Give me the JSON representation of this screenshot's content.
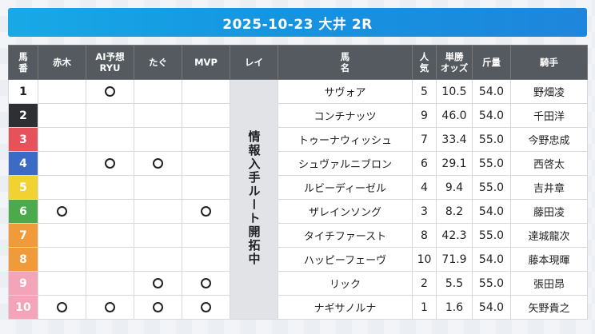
{
  "title": "2025-10-23 大井 2R",
  "headers": {
    "num": [
      "馬",
      "番"
    ],
    "akagi": "赤木",
    "ai": [
      "AI予想",
      "RYU"
    ],
    "tagu": "たぐ",
    "mvp": "MVP",
    "rei": "レイ",
    "horse": [
      "馬",
      "名"
    ],
    "pop": [
      "人",
      "気"
    ],
    "odds": [
      "単勝",
      "オッズ"
    ],
    "weight": "斤量",
    "jockey": "騎手"
  },
  "route_note": "情報入手ルート開拓中",
  "mark_symbol": "circle",
  "rows": [
    {
      "num": "1",
      "akagi": false,
      "ai": true,
      "tagu": false,
      "mvp": false,
      "horse": "サヴォア",
      "pop": "5",
      "odds": "10.5",
      "weight": "54.0",
      "jockey": "野畑凌"
    },
    {
      "num": "2",
      "akagi": false,
      "ai": false,
      "tagu": false,
      "mvp": false,
      "horse": "コンチナッツ",
      "pop": "9",
      "odds": "46.0",
      "weight": "54.0",
      "jockey": "千田洋"
    },
    {
      "num": "3",
      "akagi": false,
      "ai": false,
      "tagu": false,
      "mvp": false,
      "horse": "トゥーナウィッシュ",
      "pop": "7",
      "odds": "33.4",
      "weight": "55.0",
      "jockey": "今野忠成"
    },
    {
      "num": "4",
      "akagi": false,
      "ai": true,
      "tagu": true,
      "mvp": false,
      "horse": "シュヴァルニブロン",
      "pop": "6",
      "odds": "29.1",
      "weight": "55.0",
      "jockey": "西啓太"
    },
    {
      "num": "5",
      "akagi": false,
      "ai": false,
      "tagu": false,
      "mvp": false,
      "horse": "ルビーディーゼル",
      "pop": "4",
      "odds": "9.4",
      "weight": "55.0",
      "jockey": "吉井章"
    },
    {
      "num": "6",
      "akagi": true,
      "ai": false,
      "tagu": false,
      "mvp": true,
      "horse": "ザレインソング",
      "pop": "3",
      "odds": "8.2",
      "weight": "54.0",
      "jockey": "藤田凌"
    },
    {
      "num": "7",
      "akagi": false,
      "ai": false,
      "tagu": false,
      "mvp": false,
      "horse": "タイチファースト",
      "pop": "8",
      "odds": "42.3",
      "weight": "55.0",
      "jockey": "達城龍次"
    },
    {
      "num": "8",
      "akagi": false,
      "ai": false,
      "tagu": false,
      "mvp": false,
      "horse": "ハッピーフェーヴ",
      "pop": "10",
      "odds": "71.9",
      "weight": "54.0",
      "jockey": "藤本現暉"
    },
    {
      "num": "9",
      "akagi": false,
      "ai": false,
      "tagu": true,
      "mvp": true,
      "horse": "リック",
      "pop": "2",
      "odds": "5.5",
      "weight": "55.0",
      "jockey": "張田昂"
    },
    {
      "num": "10",
      "akagi": true,
      "ai": true,
      "tagu": true,
      "mvp": true,
      "horse": "ナギサノルナ",
      "pop": "1",
      "odds": "1.6",
      "weight": "54.0",
      "jockey": "矢野貴之"
    }
  ]
}
